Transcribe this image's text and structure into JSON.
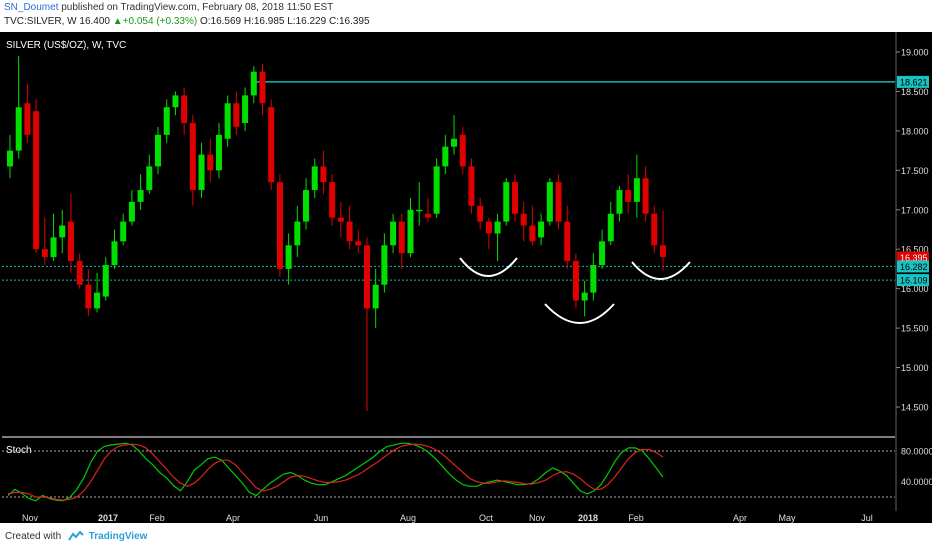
{
  "header": {
    "author": "SN_Doumet",
    "published": "published on TradingView.com, February 08, 2018 11:50 EST",
    "symbol": "TVC:SILVER, W",
    "last": "16.400",
    "change": "+0.054 (+0.33%)",
    "ohlc": "O:16.569 H:16.985 L:16.229 C:16.395"
  },
  "footer": {
    "created": "Created with",
    "brand": "TradingView"
  },
  "colors": {
    "background": "#000000",
    "up": "#00e000",
    "down": "#e00000",
    "resistance": "#19b4b4",
    "support": "#19b4b4",
    "stoch_k": "#00cc00",
    "stoch_d": "#dd2222",
    "label_bg": "#19c3c3",
    "price_tag": "#e00000"
  },
  "chart_data": [
    {
      "type": "candlestick",
      "title": "SILVER (US$/OZ), W, TVC",
      "y_ticks": [
        "19.000",
        "18.500",
        "18.000",
        "17.500",
        "17.000",
        "16.500",
        "16.000",
        "15.500",
        "15.000",
        "14.500"
      ],
      "x_ticks": [
        "Nov",
        "2017",
        "Feb",
        "Apr",
        "Jun",
        "Aug",
        "Oct",
        "Nov",
        "2018",
        "Feb",
        "Apr",
        "May",
        "Jul"
      ],
      "ylim": [
        14.2,
        19.2
      ],
      "price_labels": {
        "resistance": "18.621",
        "current": "16.395",
        "support_1": "16.282",
        "support_2": "16.109"
      },
      "horizontal_lines": [
        18.621,
        16.282,
        16.109
      ],
      "candles": [
        [
          17.55,
          17.75,
          17.4,
          17.95
        ],
        [
          17.75,
          18.3,
          17.65,
          18.95
        ],
        [
          18.35,
          17.95,
          17.85,
          18.6
        ],
        [
          18.25,
          16.5,
          16.45,
          18.4
        ],
        [
          16.5,
          16.4,
          16.3,
          16.9
        ],
        [
          16.4,
          16.65,
          16.35,
          16.95
        ],
        [
          16.65,
          16.8,
          16.45,
          17.0
        ],
        [
          16.85,
          16.35,
          16.2,
          17.2
        ],
        [
          16.35,
          16.05,
          16.0,
          16.45
        ],
        [
          16.05,
          15.75,
          15.65,
          16.25
        ],
        [
          15.75,
          15.95,
          15.7,
          16.2
        ],
        [
          15.9,
          16.3,
          15.85,
          16.4
        ],
        [
          16.3,
          16.6,
          16.25,
          16.75
        ],
        [
          16.6,
          16.85,
          16.55,
          16.95
        ],
        [
          16.85,
          17.1,
          16.8,
          17.25
        ],
        [
          17.1,
          17.25,
          17.0,
          17.45
        ],
        [
          17.25,
          17.55,
          17.2,
          17.7
        ],
        [
          17.55,
          17.95,
          17.45,
          18.05
        ],
        [
          17.95,
          18.3,
          17.85,
          18.4
        ],
        [
          18.3,
          18.45,
          18.2,
          18.5
        ],
        [
          18.45,
          18.1,
          17.95,
          18.55
        ],
        [
          18.1,
          17.25,
          17.05,
          18.2
        ],
        [
          17.25,
          17.7,
          17.15,
          17.85
        ],
        [
          17.7,
          17.5,
          17.35,
          17.9
        ],
        [
          17.5,
          17.95,
          17.4,
          18.1
        ],
        [
          17.9,
          18.35,
          17.8,
          18.45
        ],
        [
          18.35,
          18.05,
          17.95,
          18.5
        ],
        [
          18.1,
          18.45,
          18.0,
          18.55
        ],
        [
          18.45,
          18.75,
          18.35,
          18.82
        ],
        [
          18.75,
          18.35,
          18.2,
          18.85
        ],
        [
          18.3,
          17.35,
          17.25,
          18.4
        ],
        [
          17.35,
          16.25,
          16.15,
          17.45
        ],
        [
          16.25,
          16.55,
          16.05,
          16.7
        ],
        [
          16.55,
          16.85,
          16.4,
          17.05
        ],
        [
          16.85,
          17.25,
          16.75,
          17.4
        ],
        [
          17.25,
          17.55,
          17.15,
          17.65
        ],
        [
          17.55,
          17.35,
          17.2,
          17.75
        ],
        [
          17.35,
          16.9,
          16.8,
          17.45
        ],
        [
          16.9,
          16.85,
          16.65,
          17.1
        ],
        [
          16.85,
          16.6,
          16.5,
          17.05
        ],
        [
          16.6,
          16.55,
          16.45,
          16.75
        ],
        [
          16.55,
          15.75,
          14.45,
          16.65
        ],
        [
          15.75,
          16.05,
          15.5,
          16.25
        ],
        [
          16.05,
          16.55,
          15.95,
          16.7
        ],
        [
          16.55,
          16.85,
          16.45,
          16.95
        ],
        [
          16.85,
          16.45,
          16.25,
          16.95
        ],
        [
          16.45,
          17.0,
          16.4,
          17.15
        ],
        [
          17.0,
          17.0,
          16.8,
          17.35
        ],
        [
          16.95,
          16.9,
          16.85,
          17.15
        ],
        [
          16.95,
          17.55,
          16.9,
          17.65
        ],
        [
          17.55,
          17.8,
          17.45,
          17.95
        ],
        [
          17.8,
          17.9,
          17.7,
          18.2
        ],
        [
          17.95,
          17.55,
          17.45,
          18.05
        ],
        [
          17.55,
          17.05,
          16.95,
          17.65
        ],
        [
          17.05,
          16.85,
          16.75,
          17.15
        ],
        [
          16.85,
          16.7,
          16.5,
          16.9
        ],
        [
          16.7,
          16.85,
          16.35,
          16.95
        ],
        [
          16.85,
          17.35,
          16.8,
          17.4
        ],
        [
          17.35,
          16.95,
          16.85,
          17.45
        ],
        [
          16.95,
          16.8,
          16.6,
          17.1
        ],
        [
          16.8,
          16.6,
          16.55,
          17.05
        ],
        [
          16.65,
          16.85,
          16.55,
          16.95
        ],
        [
          16.85,
          17.35,
          16.8,
          17.4
        ],
        [
          17.35,
          16.85,
          16.75,
          17.45
        ],
        [
          16.85,
          16.35,
          16.25,
          17.05
        ],
        [
          16.35,
          15.85,
          15.75,
          16.45
        ],
        [
          15.85,
          15.95,
          15.65,
          16.1
        ],
        [
          15.95,
          16.3,
          15.85,
          16.45
        ],
        [
          16.3,
          16.6,
          16.25,
          16.75
        ],
        [
          16.6,
          16.95,
          16.55,
          17.1
        ],
        [
          16.95,
          17.25,
          16.85,
          17.3
        ],
        [
          17.25,
          17.1,
          16.95,
          17.45
        ],
        [
          17.1,
          17.4,
          16.9,
          17.7
        ],
        [
          17.4,
          16.95,
          16.85,
          17.55
        ],
        [
          16.95,
          16.55,
          16.45,
          17.05
        ],
        [
          16.55,
          16.4,
          16.23,
          16.99
        ]
      ]
    },
    {
      "type": "line",
      "title": "Stoch",
      "y_ticks": [
        "80.0000",
        "40.0000"
      ],
      "ylim": [
        0,
        100
      ],
      "levels": [
        80,
        20
      ],
      "series": [
        {
          "values": [
            22,
            30,
            25,
            18,
            15,
            22,
            18,
            16,
            15,
            20,
            30,
            45,
            65,
            80,
            86,
            88,
            89,
            90,
            88,
            80,
            70,
            62,
            52,
            45,
            35,
            28,
            40,
            55,
            62,
            70,
            72,
            68,
            58,
            48,
            38,
            26,
            22,
            30,
            38,
            44,
            50,
            52,
            48,
            42,
            38,
            36,
            36,
            40,
            44,
            48,
            54,
            60,
            66,
            72,
            80,
            86,
            88,
            90,
            90,
            88,
            84,
            78,
            70,
            60,
            50,
            42,
            36,
            34,
            34,
            38,
            40,
            42,
            40,
            38,
            36,
            36,
            38,
            44,
            52,
            58,
            54,
            48,
            38,
            28,
            24,
            28,
            36,
            50,
            66,
            78,
            84,
            84,
            80,
            70,
            58,
            46
          ]
        },
        {
          "values": [
            24,
            26,
            26,
            24,
            20,
            20,
            19,
            17,
            16,
            17,
            20,
            28,
            40,
            55,
            70,
            80,
            86,
            88,
            89,
            88,
            84,
            76,
            66,
            56,
            46,
            38,
            34,
            38,
            46,
            56,
            64,
            68,
            68,
            62,
            52,
            42,
            32,
            28,
            30,
            34,
            40,
            46,
            48,
            47,
            44,
            41,
            39,
            39,
            40,
            42,
            46,
            50,
            56,
            62,
            68,
            75,
            81,
            86,
            88,
            89,
            88,
            86,
            82,
            76,
            68,
            60,
            52,
            44,
            40,
            38,
            38,
            40,
            41,
            40,
            39,
            37,
            37,
            39,
            42,
            48,
            52,
            53,
            50,
            44,
            36,
            30,
            30,
            36,
            46,
            58,
            70,
            78,
            82,
            82,
            78,
            72
          ]
        }
      ]
    }
  ]
}
